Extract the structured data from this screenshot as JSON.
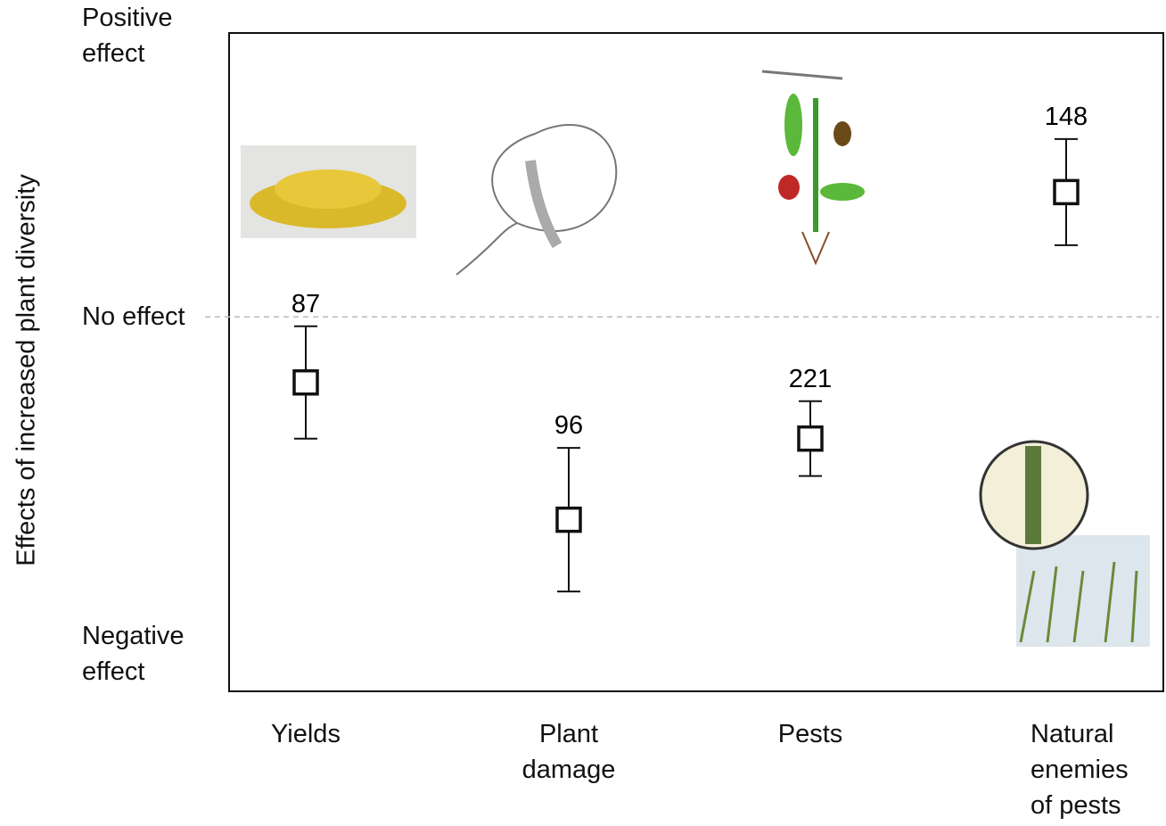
{
  "chart_data": {
    "type": "errorbar",
    "y_label": "Effects of increased plant diversity",
    "categories": [
      "Yields",
      "Plant damage",
      "Pests",
      "Natural enemies of pests"
    ],
    "values": [
      -0.21,
      -0.65,
      -0.39,
      0.4
    ],
    "error": [
      0.18,
      0.23,
      0.12,
      0.17
    ],
    "sample_sizes": [
      87,
      96,
      221,
      148
    ],
    "ylim": [
      -1.2,
      0.91
    ],
    "yticks": [
      {
        "value": 0.9,
        "label": "Positive effect"
      },
      {
        "value": 0,
        "label": "No effect"
      },
      {
        "value": -1.08,
        "label": "Negative effect"
      }
    ],
    "reference_line": 0,
    "color": "#111111"
  }
}
